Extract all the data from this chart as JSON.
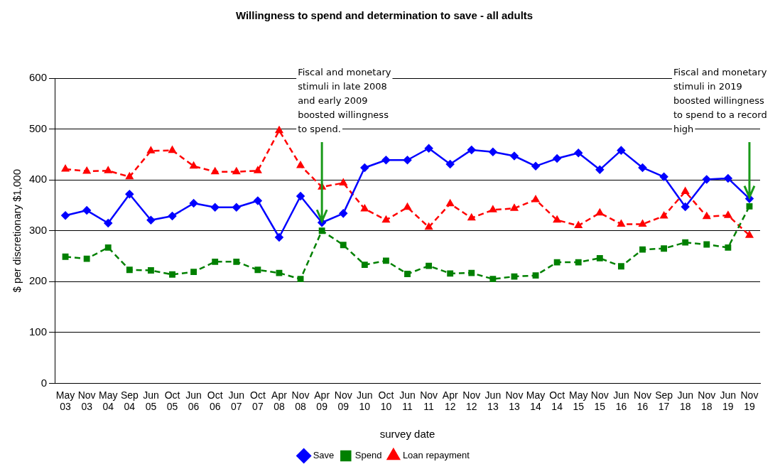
{
  "chart_data": {
    "type": "line",
    "title": "Willingness to spend and determination to save - all adults",
    "xlabel": "survey date",
    "ylabel": "$ per discretionary $1,000",
    "categories": [
      "May 03",
      "Nov 03",
      "May 04",
      "Sep 04",
      "Jun 05",
      "Oct 05",
      "Jun 06",
      "Oct 06",
      "Jun 07",
      "Oct 07",
      "Apr 08",
      "Nov 08",
      "Apr 09",
      "Nov 09",
      "Jun 10",
      "Oct 10",
      "Jun 11",
      "Nov 11",
      "Apr 12",
      "Nov 12",
      "Jun 13",
      "Nov 13",
      "May 14",
      "Oct 14",
      "May 15",
      "Nov 15",
      "Jun 16",
      "Nov 16",
      "Sep 17",
      "Jun 18",
      "Nov 18",
      "Jun 19",
      "Nov 19"
    ],
    "series": [
      {
        "name": "Save",
        "color": "#0000ff",
        "marker": "diamond",
        "line_style": "solid",
        "values": [
          330,
          340,
          315,
          372,
          321,
          329,
          354,
          346,
          346,
          359,
          287,
          368,
          316,
          334,
          424,
          439,
          439,
          462,
          431,
          459,
          455,
          447,
          427,
          442,
          453,
          420,
          458,
          424,
          406,
          347,
          401,
          403,
          363
        ]
      },
      {
        "name": "Spend",
        "color": "#008000",
        "marker": "square",
        "line_style": "dashed",
        "values": [
          249,
          245,
          267,
          223,
          222,
          214,
          219,
          239,
          239,
          223,
          217,
          205,
          300,
          272,
          233,
          241,
          215,
          231,
          216,
          217,
          205,
          210,
          212,
          238,
          238,
          246,
          230,
          263,
          265,
          277,
          273,
          267,
          348
        ]
      },
      {
        "name": "Loan repayment",
        "color": "#ff0000",
        "marker": "triangle",
        "line_style": "dashed",
        "values": [
          421,
          417,
          418,
          406,
          457,
          458,
          427,
          416,
          416,
          418,
          497,
          428,
          386,
          394,
          343,
          321,
          346,
          307,
          353,
          325,
          341,
          344,
          361,
          321,
          310,
          335,
          313,
          313,
          329,
          377,
          328,
          330,
          291
        ]
      }
    ],
    "ylim": [
      0,
      600
    ],
    "yticks": [
      0,
      100,
      200,
      300,
      400,
      500,
      600
    ],
    "grid": "y",
    "legend": "bottom",
    "annotations": [
      {
        "text": "Fiscal and monetary stimuli in late 2008 and early 2009 boosted willingness to spend.",
        "x": "Apr 09",
        "y": 316
      },
      {
        "text": "Fiscal and monetary stimuli in 2019 boosted willingness to spend to a record high",
        "x": "Nov 19",
        "y": 363
      }
    ]
  }
}
